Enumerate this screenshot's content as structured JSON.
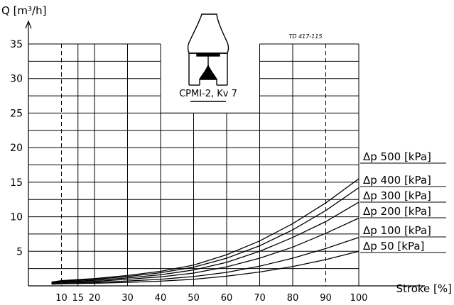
{
  "chart_data": {
    "type": "line",
    "ylabel": "Q [m³/h]",
    "xlabel": "Stroke [%]",
    "drawing_code": "TD 417-115",
    "valve_caption": "CPMI-2, Kv 7",
    "xlim": [
      0,
      100
    ],
    "ylim": [
      0,
      35
    ],
    "x_ticks": [
      10,
      15,
      20,
      30,
      40,
      50,
      60,
      70,
      80,
      90,
      100
    ],
    "y_ticks": [
      5,
      10,
      15,
      20,
      25,
      30,
      35
    ],
    "x_gridlines": [
      10,
      15,
      20,
      30,
      40,
      50,
      60,
      70,
      80,
      90,
      100
    ],
    "dashed_gridlines": [
      10,
      90
    ],
    "grid": true,
    "series": [
      {
        "name": "Δp 500 [kPa]",
        "x": [
          0,
          10,
          20,
          30,
          40,
          50,
          60,
          70,
          80,
          90,
          100
        ],
        "y": [
          0.55,
          0.75,
          1.05,
          1.5,
          2.1,
          3.0,
          4.5,
          6.5,
          9.0,
          12.0,
          15.5
        ]
      },
      {
        "name": "Δp 400 [kPa]",
        "x": [
          0,
          10,
          20,
          30,
          40,
          50,
          60,
          70,
          80,
          90,
          100
        ],
        "y": [
          0.5,
          0.7,
          0.95,
          1.35,
          1.9,
          2.7,
          4.0,
          5.8,
          8.1,
          10.9,
          14.2
        ]
      },
      {
        "name": "Δp 300 [kPa]",
        "x": [
          0,
          10,
          20,
          30,
          40,
          50,
          60,
          70,
          80,
          90,
          100
        ],
        "y": [
          0.45,
          0.6,
          0.8,
          1.15,
          1.6,
          2.3,
          3.4,
          5.0,
          7.0,
          9.3,
          12.1
        ]
      },
      {
        "name": "Δp 200 [kPa]",
        "x": [
          0,
          10,
          20,
          30,
          40,
          50,
          60,
          70,
          80,
          90,
          100
        ],
        "y": [
          0.4,
          0.5,
          0.65,
          0.95,
          1.3,
          1.85,
          2.75,
          4.0,
          5.6,
          7.6,
          9.8
        ]
      },
      {
        "name": "Δp 100 [kPa]",
        "x": [
          0,
          10,
          20,
          30,
          40,
          50,
          60,
          70,
          80,
          90,
          100
        ],
        "y": [
          0.3,
          0.38,
          0.5,
          0.7,
          0.95,
          1.35,
          1.95,
          2.85,
          4.0,
          5.4,
          7.0
        ]
      },
      {
        "name": "Δp 50 [kPa]",
        "x": [
          0,
          10,
          20,
          30,
          40,
          50,
          60,
          70,
          80,
          90,
          100
        ],
        "y": [
          0.25,
          0.3,
          0.38,
          0.5,
          0.68,
          0.95,
          1.4,
          2.0,
          2.8,
          3.8,
          5.0
        ]
      }
    ]
  }
}
